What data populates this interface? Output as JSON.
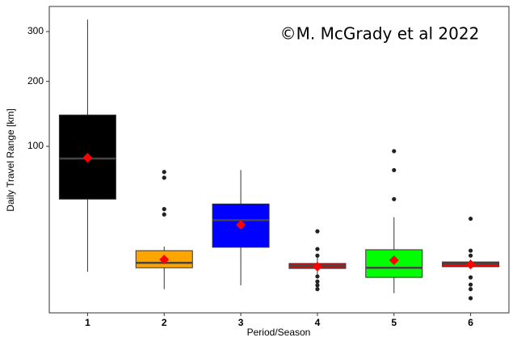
{
  "chart_data": {
    "type": "box",
    "annotation": "©M. McGrady et al 2022",
    "x_label": "Period/Season",
    "y_label": "Daily Travel Range [km]",
    "y_scale": "sqrt",
    "ylim": [
      0,
      358
    ],
    "yticks": [
      100,
      200,
      300
    ],
    "grid": false,
    "categories": [
      "1",
      "2",
      "3",
      "4",
      "5",
      "6"
    ],
    "boxes": [
      {
        "color": "#000000",
        "whisker_low": 4,
        "q1": 44,
        "median": 85,
        "q3": 144,
        "whisker_high": 327,
        "mean": 86,
        "outliers": []
      },
      {
        "color": "#ffa500",
        "whisker_low": 0.8,
        "q1": 5.1,
        "median": 6.6,
        "q3": 11.2,
        "whisker_high": 13,
        "mean": 7.7,
        "outliers": [
          70,
          64,
          36,
          32
        ]
      },
      {
        "color": "#0000ff",
        "whisker_low": 1.3,
        "q1": 12.7,
        "median": 28,
        "q3": 40,
        "whisker_high": 72,
        "mean": 25,
        "outliers": []
      },
      {
        "color": "#ff0000",
        "whisker_low": 3.3,
        "q1": 4.9,
        "median": 5.6,
        "q3": 6.4,
        "whisker_high": 8.6,
        "mean": 5.4,
        "outliers": [
          21,
          11.9,
          9.2,
          2.9,
          1.9,
          1.3,
          0.8
        ]
      },
      {
        "color": "#00ff00",
        "whisker_low": 0.4,
        "q1": 2.7,
        "median": 5.1,
        "q3": 11.6,
        "whisker_high": 30,
        "mean": 7.5,
        "outliers": [
          94,
          72,
          44
        ]
      },
      {
        "color": "#ff0000",
        "whisker_low": 4.9,
        "q1": 5.4,
        "median": 6.4,
        "q3": 6.9,
        "whisker_high": 7.7,
        "mean": 6.1,
        "outliers": [
          29,
          11.2,
          9.2,
          2.7,
          1.4,
          0.8,
          0.1
        ]
      }
    ]
  }
}
